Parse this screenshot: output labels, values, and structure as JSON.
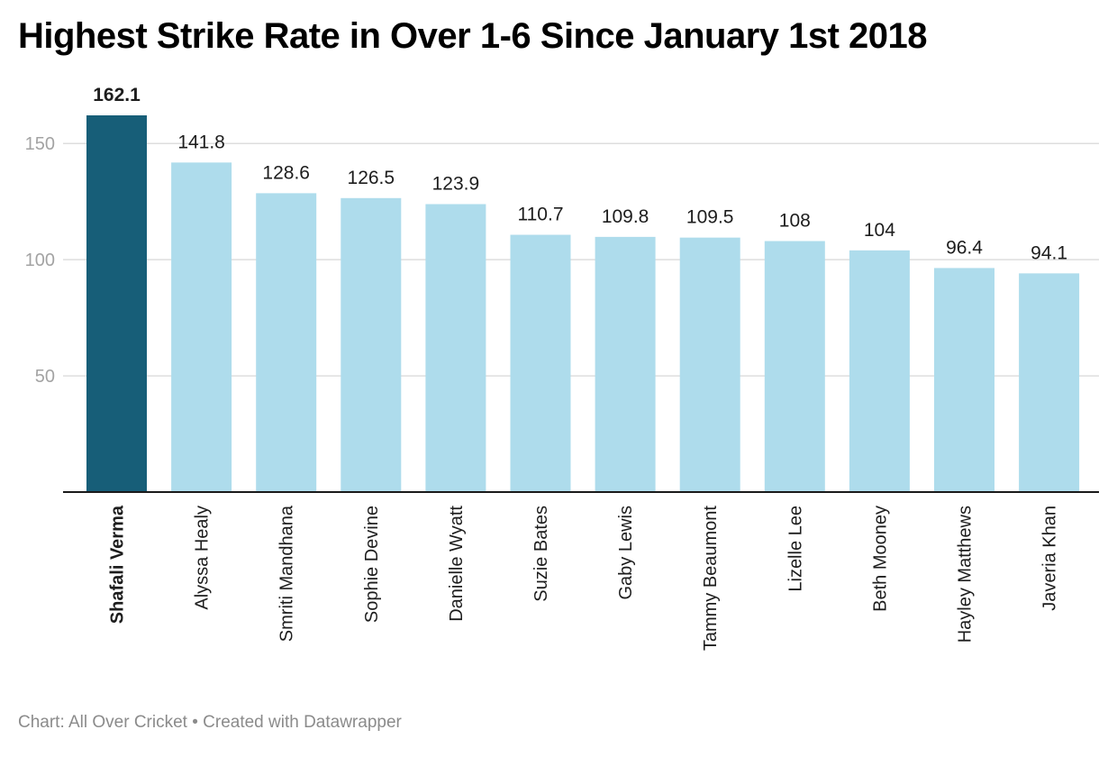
{
  "chart_data": {
    "type": "bar",
    "title": "Highest Strike Rate in Over 1-6 Since January 1st 2018",
    "categories": [
      "Shafali Verma",
      "Alyssa Healy",
      "Smriti Mandhana",
      "Sophie Devine",
      "Danielle Wyatt",
      "Suzie Bates",
      "Gaby Lewis",
      "Tammy Beaumont",
      "Lizelle Lee",
      "Beth Mooney",
      "Hayley Matthews",
      "Javeria Khan"
    ],
    "values": [
      162.1,
      141.8,
      128.6,
      126.5,
      123.9,
      110.7,
      109.8,
      109.5,
      108,
      104,
      96.4,
      94.1
    ],
    "value_labels": [
      "162.1",
      "141.8",
      "128.6",
      "126.5",
      "123.9",
      "110.7",
      "109.8",
      "109.5",
      "108",
      "104",
      "96.4",
      "94.1"
    ],
    "highlight_index": 0,
    "ylim": [
      0,
      162.1
    ],
    "yticks": [
      50,
      100,
      150
    ],
    "ytick_labels": [
      "50",
      "100",
      "150"
    ],
    "grid": true,
    "xlabel": "",
    "ylabel": "",
    "colors": {
      "highlight": "#175e78",
      "bar": "#aedcec",
      "grid": "#dedede",
      "axis": "#1a1a1a",
      "tick_text": "#a3a3a3"
    }
  },
  "footer": {
    "text": "Chart: All Over Cricket • Created with Datawrapper"
  }
}
